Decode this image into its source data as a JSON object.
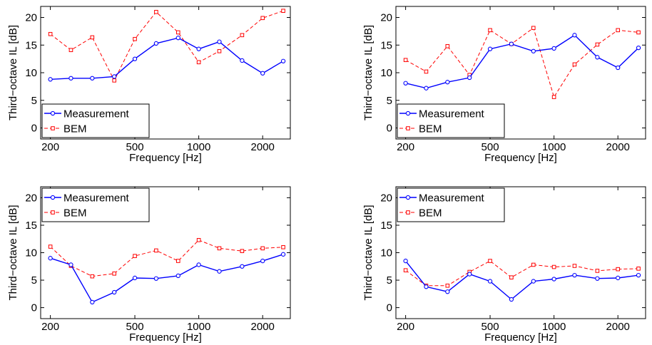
{
  "chart_data": [
    {
      "type": "line",
      "xscale": "log",
      "xlabel": "Frequency [Hz]",
      "ylabel": "Third−octave IL [dB]",
      "xlim": [
        180,
        2700
      ],
      "ylim": [
        -2,
        22
      ],
      "xticks": [
        200,
        500,
        1000,
        2000
      ],
      "yticks": [
        0,
        5,
        10,
        15,
        20
      ],
      "legend": "bottom-left",
      "x": [
        200,
        250,
        315,
        400,
        500,
        630,
        800,
        1000,
        1250,
        1600,
        2000,
        2500
      ],
      "series": [
        {
          "name": "Measurement",
          "color": "#0000ff",
          "style": "solid",
          "marker": "circle",
          "values": [
            8.8,
            9.0,
            9.0,
            9.3,
            12.5,
            15.3,
            16.3,
            14.3,
            15.6,
            12.2,
            9.9,
            12.1
          ]
        },
        {
          "name": "BEM",
          "color": "#ff0000",
          "style": "dashed",
          "marker": "square",
          "values": [
            17.0,
            14.1,
            16.4,
            8.6,
            16.1,
            21.0,
            17.3,
            11.9,
            13.9,
            16.8,
            19.9,
            21.2
          ]
        }
      ]
    },
    {
      "type": "line",
      "xscale": "log",
      "xlabel": "Frequency [Hz]",
      "ylabel": "Third−octave IL [dB]",
      "xlim": [
        180,
        2700
      ],
      "ylim": [
        -2,
        22
      ],
      "xticks": [
        200,
        500,
        1000,
        2000
      ],
      "yticks": [
        0,
        5,
        10,
        15,
        20
      ],
      "legend": "bottom-left",
      "x": [
        200,
        250,
        315,
        400,
        500,
        630,
        800,
        1000,
        1250,
        1600,
        2000,
        2500
      ],
      "series": [
        {
          "name": "Measurement",
          "color": "#0000ff",
          "style": "solid",
          "marker": "circle",
          "values": [
            8.1,
            7.2,
            8.3,
            9.1,
            14.3,
            15.2,
            13.9,
            14.4,
            16.8,
            12.8,
            10.9,
            14.5
          ]
        },
        {
          "name": "BEM",
          "color": "#ff0000",
          "style": "dashed",
          "marker": "square",
          "values": [
            12.3,
            10.2,
            14.8,
            9.6,
            17.7,
            15.2,
            18.1,
            5.6,
            11.5,
            15.1,
            17.7,
            17.3
          ]
        }
      ]
    },
    {
      "type": "line",
      "xscale": "log",
      "xlabel": "Frequency [Hz]",
      "ylabel": "Third−octave IL [dB]",
      "xlim": [
        180,
        2700
      ],
      "ylim": [
        -2,
        22
      ],
      "xticks": [
        200,
        500,
        1000,
        2000
      ],
      "yticks": [
        0,
        5,
        10,
        15,
        20
      ],
      "legend": "top-left",
      "x": [
        200,
        250,
        315,
        400,
        500,
        630,
        800,
        1000,
        1250,
        1600,
        2000,
        2500
      ],
      "series": [
        {
          "name": "Measurement",
          "color": "#0000ff",
          "style": "solid",
          "marker": "circle",
          "values": [
            9.0,
            7.8,
            1.0,
            2.8,
            5.4,
            5.3,
            5.8,
            7.8,
            6.6,
            7.5,
            8.5,
            9.7
          ]
        },
        {
          "name": "BEM",
          "color": "#ff0000",
          "style": "dashed",
          "marker": "square",
          "values": [
            11.1,
            7.6,
            5.7,
            6.2,
            9.4,
            10.4,
            8.5,
            12.3,
            10.8,
            10.3,
            10.8,
            11.0
          ]
        }
      ]
    },
    {
      "type": "line",
      "xscale": "log",
      "xlabel": "Frequency [Hz]",
      "ylabel": "Third−octave IL [dB]",
      "xlim": [
        180,
        2700
      ],
      "ylim": [
        -2,
        22
      ],
      "xticks": [
        200,
        500,
        1000,
        2000
      ],
      "yticks": [
        0,
        5,
        10,
        15,
        20
      ],
      "legend": "top-left",
      "x": [
        200,
        250,
        315,
        400,
        500,
        630,
        800,
        1000,
        1250,
        1600,
        2000,
        2500
      ],
      "series": [
        {
          "name": "Measurement",
          "color": "#0000ff",
          "style": "solid",
          "marker": "circle",
          "values": [
            8.5,
            3.8,
            2.9,
            6.1,
            4.8,
            1.5,
            4.8,
            5.2,
            5.9,
            5.3,
            5.4,
            5.9
          ]
        },
        {
          "name": "BEM",
          "color": "#ff0000",
          "style": "dashed",
          "marker": "square",
          "values": [
            6.8,
            4.0,
            4.0,
            6.5,
            8.5,
            5.5,
            7.8,
            7.4,
            7.6,
            6.7,
            7.0,
            7.1
          ]
        }
      ]
    }
  ]
}
